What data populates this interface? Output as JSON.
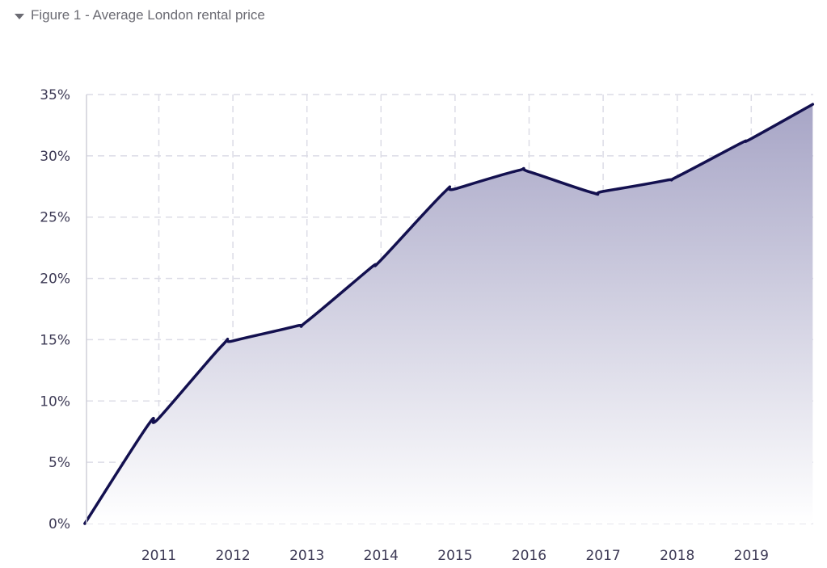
{
  "figure": {
    "caption": "Figure 1 - Average London rental price",
    "collapsed": false
  },
  "colors": {
    "line": "#13104f",
    "fill_top": "#a7a5c6",
    "fill_bottom": "#ffffff",
    "grid": "#dcdce6",
    "axis": "#cfcfd8",
    "tick_text": "#3d3a55",
    "caption_text": "#6b6b73"
  },
  "chart_data": {
    "type": "area",
    "title": "",
    "xlabel": "",
    "ylabel": "",
    "x_tick_labels": [
      "2011",
      "2012",
      "2013",
      "2014",
      "2015",
      "2016",
      "2017",
      "2018",
      "2019"
    ],
    "y_tick_labels": [
      "0%",
      "5%",
      "10%",
      "15%",
      "20%",
      "25%",
      "30%",
      "35%"
    ],
    "y_ticks": [
      0,
      5,
      10,
      15,
      20,
      25,
      30,
      35
    ],
    "xlim": [
      2010,
      2019.83
    ],
    "ylim": [
      0,
      35
    ],
    "grid": true,
    "series": [
      {
        "values_x": [
          2010,
          2010.85,
          2011,
          2011.85,
          2012,
          2012.85,
          2013,
          2013.85,
          2014,
          2014.85,
          2015,
          2015.85,
          2016,
          2016.85,
          2017,
          2017.85,
          2018,
          2018.85,
          2019,
          2019.83
        ],
        "values_y": [
          0,
          8,
          8.6,
          14.5,
          14.9,
          16.1,
          16.5,
          20.8,
          21.5,
          27,
          27.3,
          28.8,
          28.7,
          27,
          27.1,
          28,
          28.3,
          31,
          31.4,
          34.2
        ]
      }
    ]
  }
}
